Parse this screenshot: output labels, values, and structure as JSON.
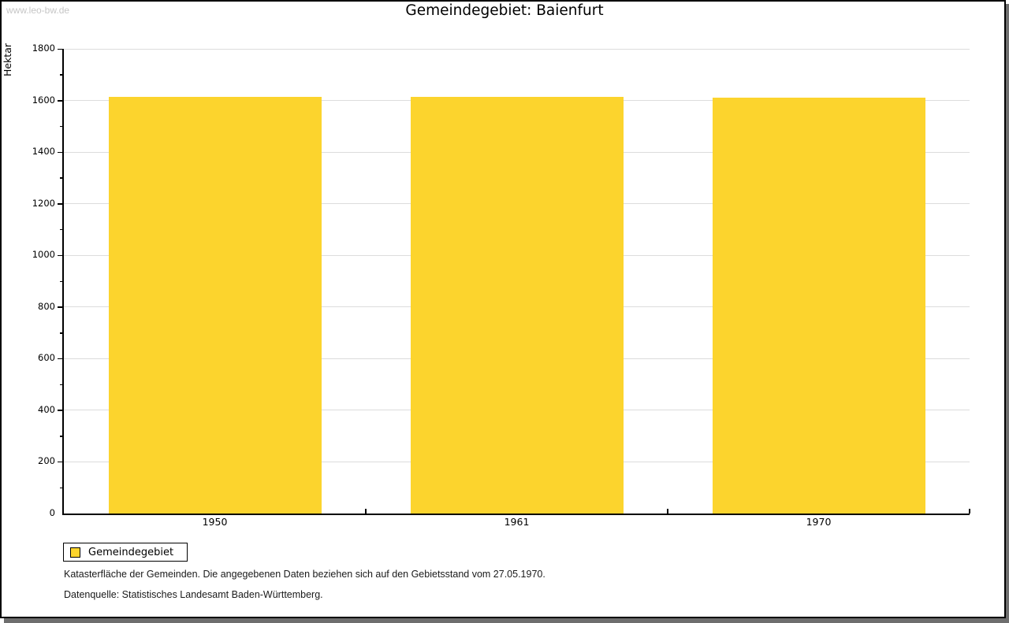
{
  "watermark": "www.leo-bw.de",
  "title": "Gemeindegebiet: Baienfurt",
  "chart_data": {
    "type": "bar",
    "title": "Gemeindegebiet: Baienfurt",
    "categories": [
      "1950",
      "1961",
      "1970"
    ],
    "series": [
      {
        "name": "Gemeindegebiet",
        "values": [
          1615,
          1615,
          1610
        ]
      }
    ],
    "xlabel": "",
    "ylabel": "Hektar",
    "ylim": [
      0,
      1800
    ],
    "ytick_step": 200,
    "minor_tick_step": 100,
    "grid": true,
    "legend_position": "bottom-left",
    "colors": {
      "bar": "#fcd42d",
      "grid": "#dcdcdc",
      "axis": "#000000",
      "watermark": "#c6c6c6",
      "frame_shadow": "#6e6e6e"
    }
  },
  "legend": {
    "items": [
      {
        "label": "Gemeindegebiet",
        "color": "#fcd42d"
      }
    ]
  },
  "footer": {
    "line1": "Katasterfläche der Gemeinden. Die angegebenen Daten beziehen sich auf den Gebietsstand vom 27.05.1970.",
    "line2": "Datenquelle: Statistisches Landesamt Baden-Württemberg."
  }
}
